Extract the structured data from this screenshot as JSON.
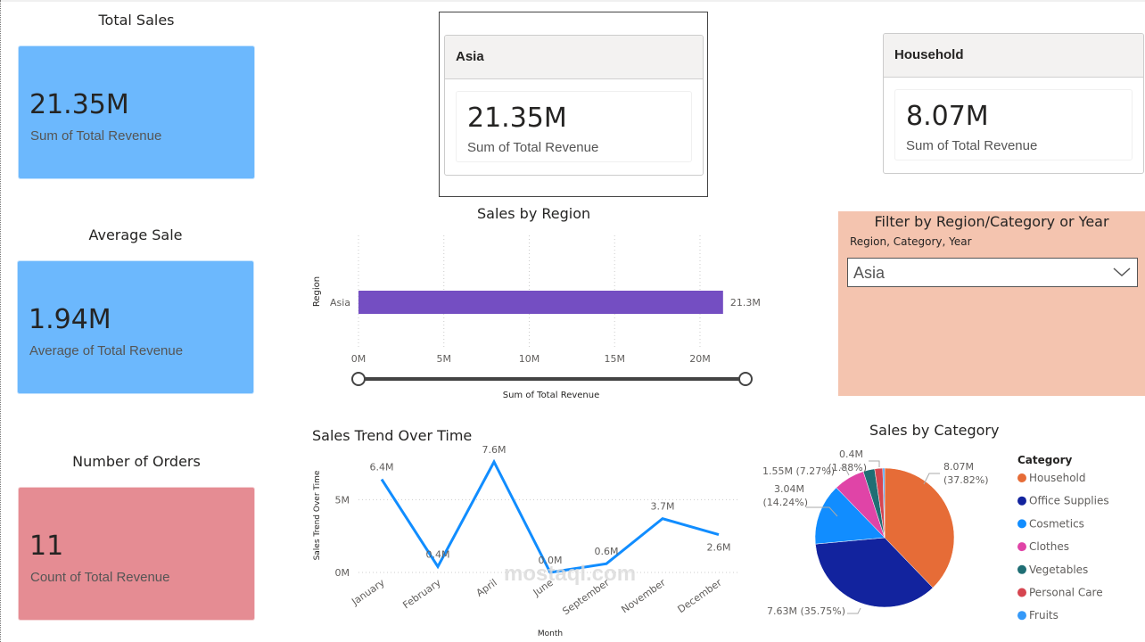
{
  "kpis": [
    {
      "title": "Total Sales",
      "value": "21.35M",
      "label": "Sum of Total Revenue",
      "color": "#6cb8fd"
    },
    {
      "title": "Average Sale",
      "value": "1.94M",
      "label": "Average of Total Revenue",
      "color": "#6cb8fd"
    },
    {
      "title": "Number of Orders",
      "value": "11",
      "label": "Count of Total Revenue",
      "color": "#e58c93"
    }
  ],
  "multi_cards": [
    {
      "header": "Asia",
      "value": "21.35M",
      "label": "Sum of Total Revenue"
    },
    {
      "header": "Household",
      "value": "8.07M",
      "label": "Sum of Total Revenue"
    }
  ],
  "filter": {
    "title": "Filter by Region/Category or Year",
    "subtitle": "Region, Category, Year",
    "selected": "Asia"
  },
  "watermark": {
    "text": "mostaql.com"
  },
  "chart_data": [
    {
      "type": "bar",
      "title": "Sales by Region",
      "orientation": "horizontal",
      "categories": [
        "Asia"
      ],
      "values": [
        21.35
      ],
      "data_labels": [
        "21.3M"
      ],
      "xlabel": "Sum of Total Revenue",
      "ylabel": "Region",
      "xlim": [
        0,
        23.5
      ],
      "xticks": [
        0,
        5,
        10,
        15,
        20
      ],
      "xtick_labels": [
        "0M",
        "5M",
        "10M",
        "15M",
        "20M"
      ],
      "grid": true,
      "bar_color": "#744ec2",
      "slider_range": [
        0,
        1
      ]
    },
    {
      "type": "line",
      "title": "Sales Trend Over Time",
      "categories": [
        "January",
        "February",
        "April",
        "June",
        "September",
        "November",
        "December"
      ],
      "values": [
        6.4,
        0.4,
        7.6,
        0.0,
        0.6,
        3.7,
        2.6
      ],
      "data_labels": [
        "6.4M",
        "0.4M",
        "7.6M",
        "0.0M",
        "0.6M",
        "3.7M",
        "2.6M"
      ],
      "xlabel": "Month",
      "ylabel": "Sales Trend Over Time",
      "ylim": [
        0,
        7.6
      ],
      "yticks": [
        0,
        5
      ],
      "ytick_labels": [
        "0M",
        "5M"
      ],
      "grid": true,
      "line_color": "#118dff"
    },
    {
      "type": "pie",
      "title": "Sales by Category",
      "legend_title": "Category",
      "legend_position": "right",
      "slices": [
        {
          "name": "Household",
          "value": 8.07,
          "percent": 37.82,
          "label": "8.07M (37.82%)",
          "color": "#e66c37"
        },
        {
          "name": "Office Supplies",
          "value": 7.63,
          "percent": 35.75,
          "label": "7.63M (35.75%)",
          "color": "#12239e"
        },
        {
          "name": "Cosmetics",
          "value": 3.04,
          "percent": 14.24,
          "label": "3.04M (14.24%)",
          "color": "#118dff"
        },
        {
          "name": "Clothes",
          "value": 1.55,
          "percent": 7.27,
          "label": "1.55M (7.27%)",
          "color": "#e044a7"
        },
        {
          "name": "Vegetables",
          "value": 0.57,
          "percent": 2.67,
          "label": "",
          "color": "#1f6e74"
        },
        {
          "name": "Personal Care",
          "value": 0.4,
          "percent": 1.88,
          "label": "0.4M (1.88%)",
          "color": "#d64550"
        },
        {
          "name": "Fruits",
          "value": 0.09,
          "percent": 0.37,
          "label": "",
          "color": "#3599f8"
        }
      ]
    }
  ]
}
